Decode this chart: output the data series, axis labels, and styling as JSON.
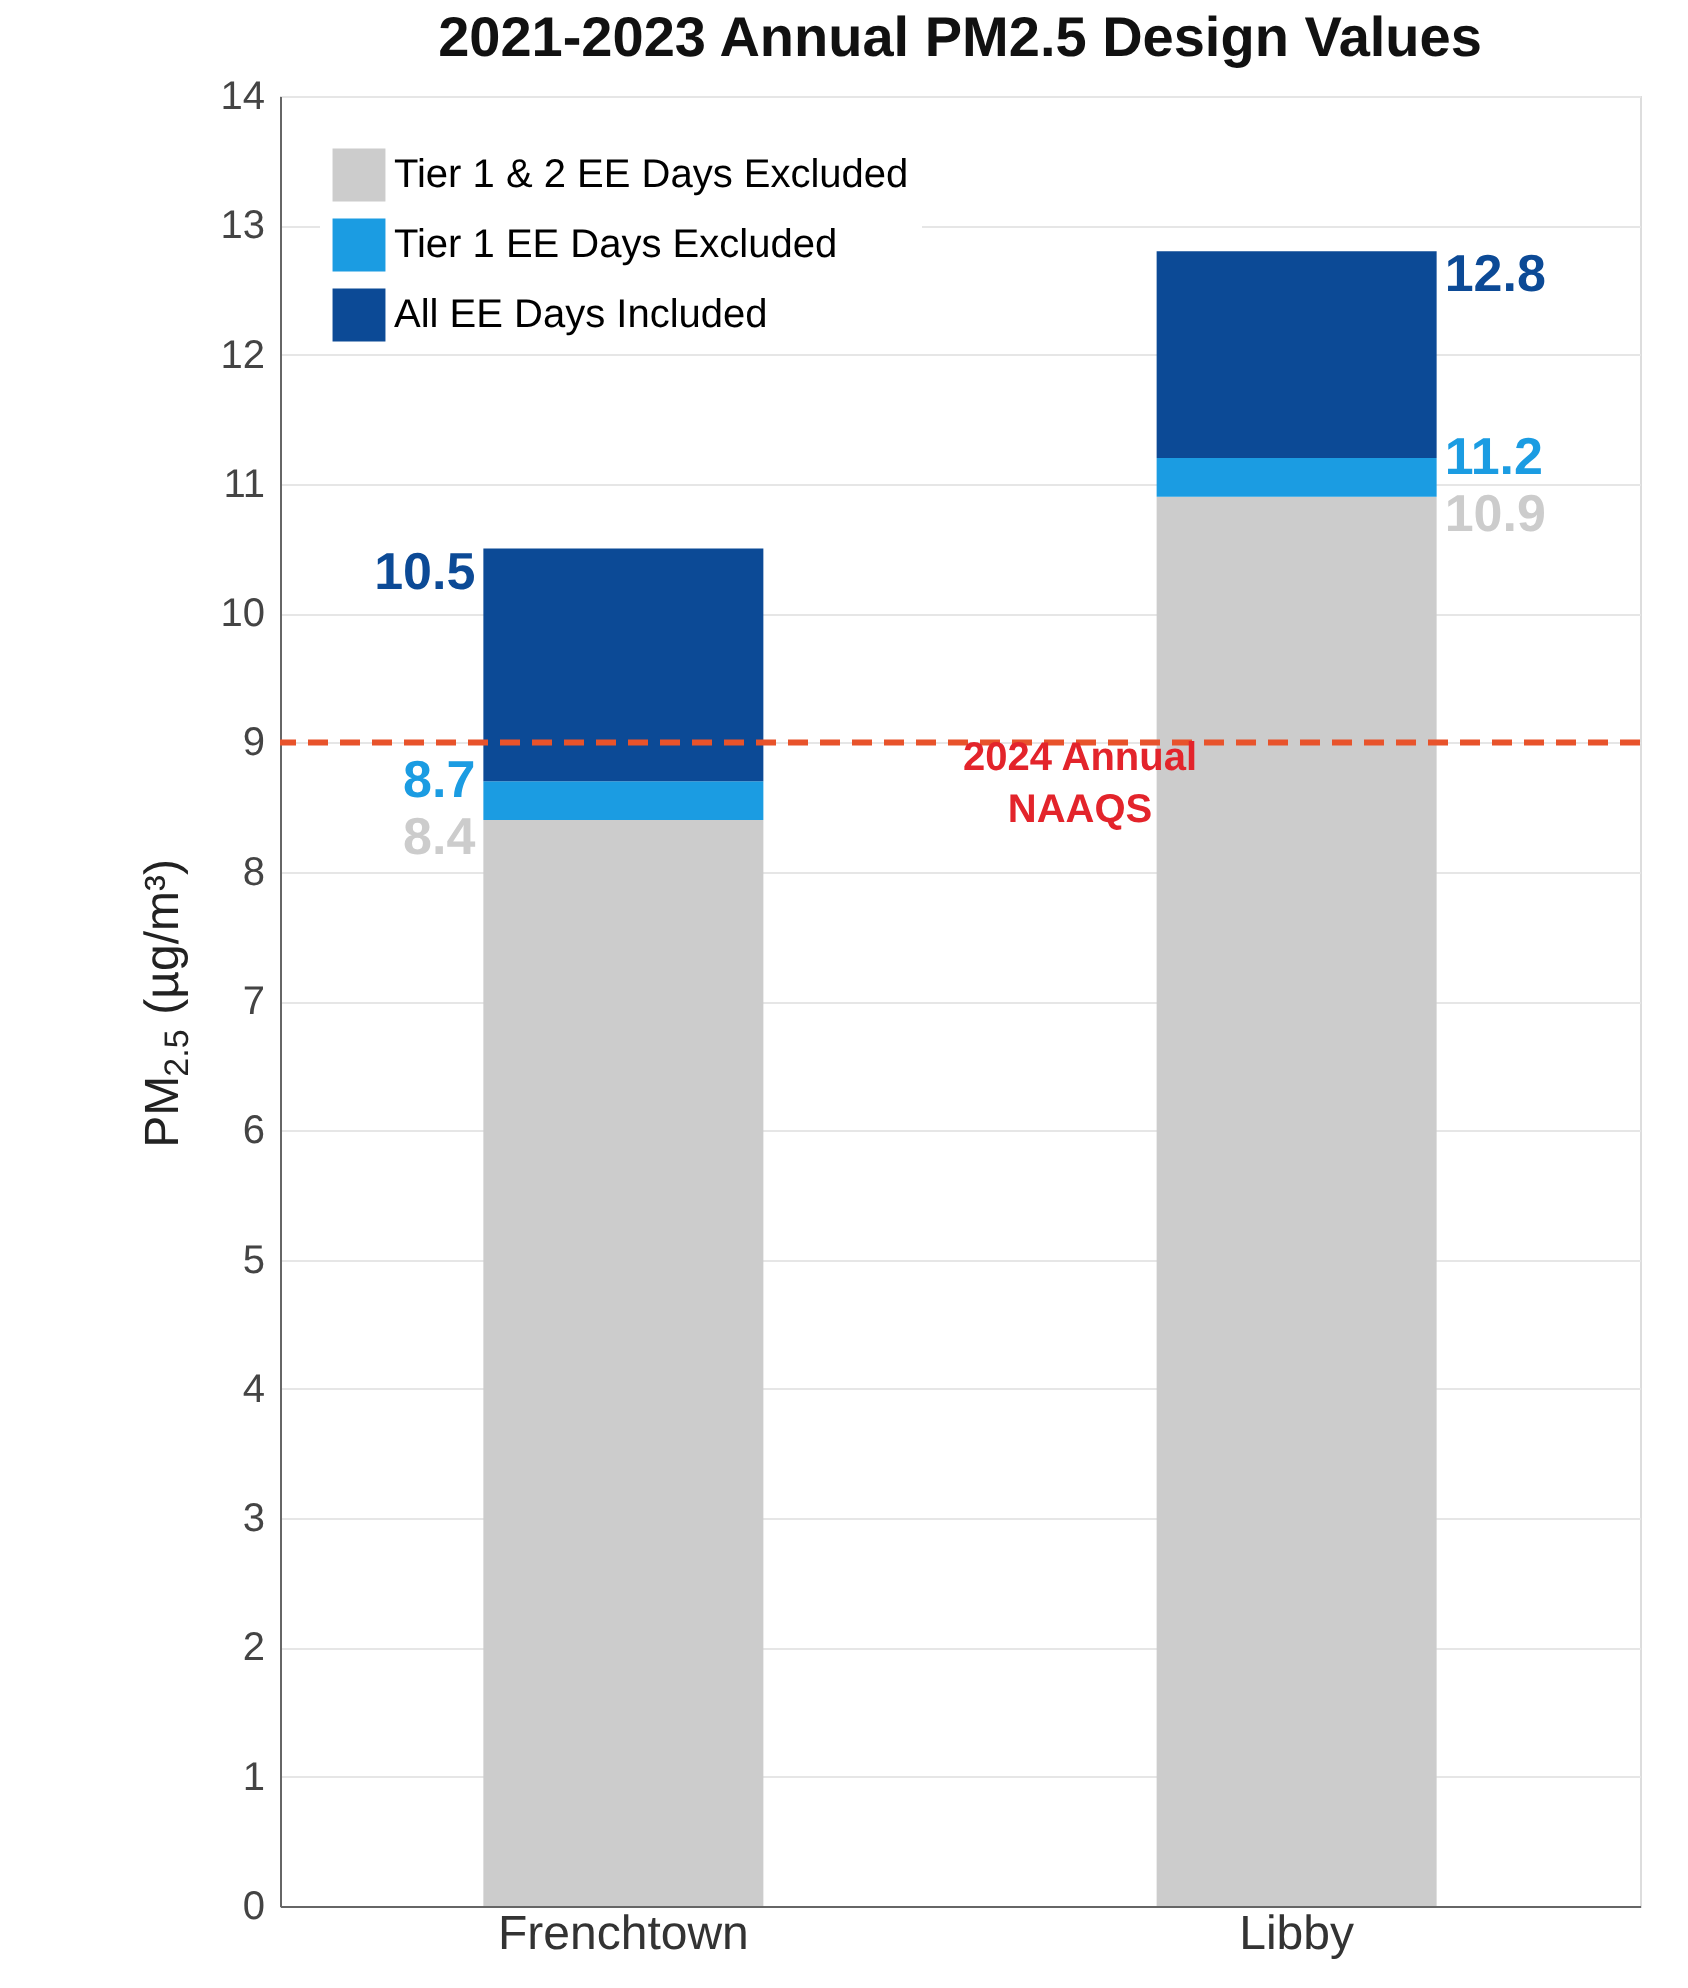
{
  "chart_data": {
    "type": "bar",
    "title": "2021-2023 Annual PM2.5 Design Values",
    "ylabel": "PM$_{2.5}$ (µg/m³)",
    "categories": [
      "Frenchtown",
      "Libby"
    ],
    "stacked": true,
    "series": [
      {
        "name": "Tier 1 & 2 EE Days Excluded",
        "color": "#cccccc",
        "values": [
          8.4,
          10.9
        ]
      },
      {
        "name": "Tier 1 EE Days Excluded",
        "color": "#1b9ce2",
        "values": [
          0.3,
          0.3
        ]
      },
      {
        "name": "All EE Days Included",
        "color": "#0c4a96",
        "values": [
          1.8,
          1.6
        ]
      }
    ],
    "annotations": [
      {
        "text": "8.4",
        "x": "Frenchtown",
        "y": 8.4
      },
      {
        "text": "8.7",
        "x": "Frenchtown",
        "y": 8.7
      },
      {
        "text": "10.5",
        "x": "Frenchtown",
        "y": 10.5
      },
      {
        "text": "10.9",
        "x": "Libby",
        "y": 10.9
      },
      {
        "text": "11.2",
        "x": "Libby",
        "y": 11.2
      },
      {
        "text": "12.8",
        "x": "Libby",
        "y": 12.8
      }
    ],
    "ylim": [
      0,
      14
    ],
    "yticks": [
      0,
      1,
      2,
      3,
      4,
      5,
      6,
      7,
      8,
      9,
      10,
      11,
      12,
      13,
      14
    ],
    "grid": "y",
    "legend": "top left",
    "ref_lines": [
      {
        "axis": "y",
        "value": 9,
        "label": "2024 Annual\nNAAQS",
        "color": "#e8532b",
        "line_style": "dashed"
      }
    ]
  }
}
